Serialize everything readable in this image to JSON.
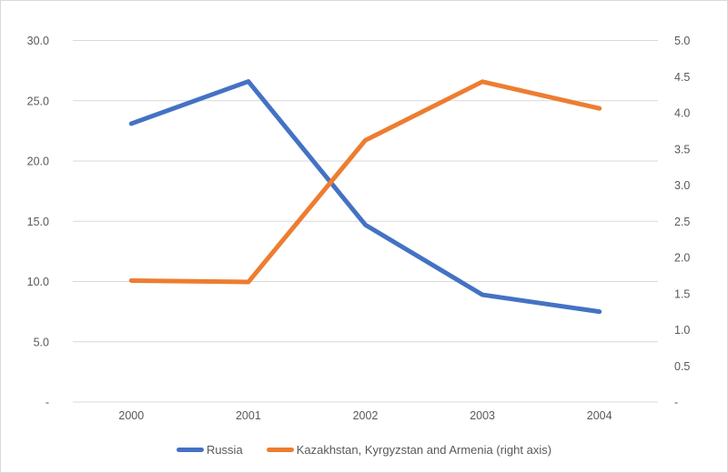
{
  "chart_data": {
    "type": "line",
    "title": "",
    "x_categories": [
      "2000",
      "2001",
      "2002",
      "2003",
      "2004"
    ],
    "series": [
      {
        "name": "Russia",
        "axis": "left",
        "color": "#4472C4",
        "values": [
          23.1,
          26.6,
          14.7,
          8.9,
          7.5
        ]
      },
      {
        "name": "Kazakhstan, Kyrgyzstan and Armenia (right axis)",
        "axis": "right",
        "color": "#ED7D31",
        "values": [
          1.68,
          1.66,
          3.62,
          4.43,
          4.06
        ]
      }
    ],
    "left_axis": {
      "min": 0,
      "max": 30,
      "tick_step": 5,
      "tick_labels": [
        "-",
        "5.0",
        "10.0",
        "15.0",
        "20.0",
        "25.0",
        "30.0"
      ]
    },
    "right_axis": {
      "min": 0,
      "max": 5,
      "tick_step": 0.5,
      "tick_labels": [
        "-",
        "0.5",
        "1.0",
        "1.5",
        "2.0",
        "2.5",
        "3.0",
        "3.5",
        "4.0",
        "4.5",
        "5.0"
      ]
    },
    "grid": "horizontal-left-ticks",
    "gridline_color": "#d9d9d9",
    "label_color": "#595959",
    "legend_position": "bottom",
    "legend": {
      "items": [
        {
          "label": "Russia",
          "color": "#4472C4"
        },
        {
          "label": "Kazakhstan, Kyrgyzstan and Armenia (right axis)",
          "color": "#ED7D31"
        }
      ]
    }
  }
}
